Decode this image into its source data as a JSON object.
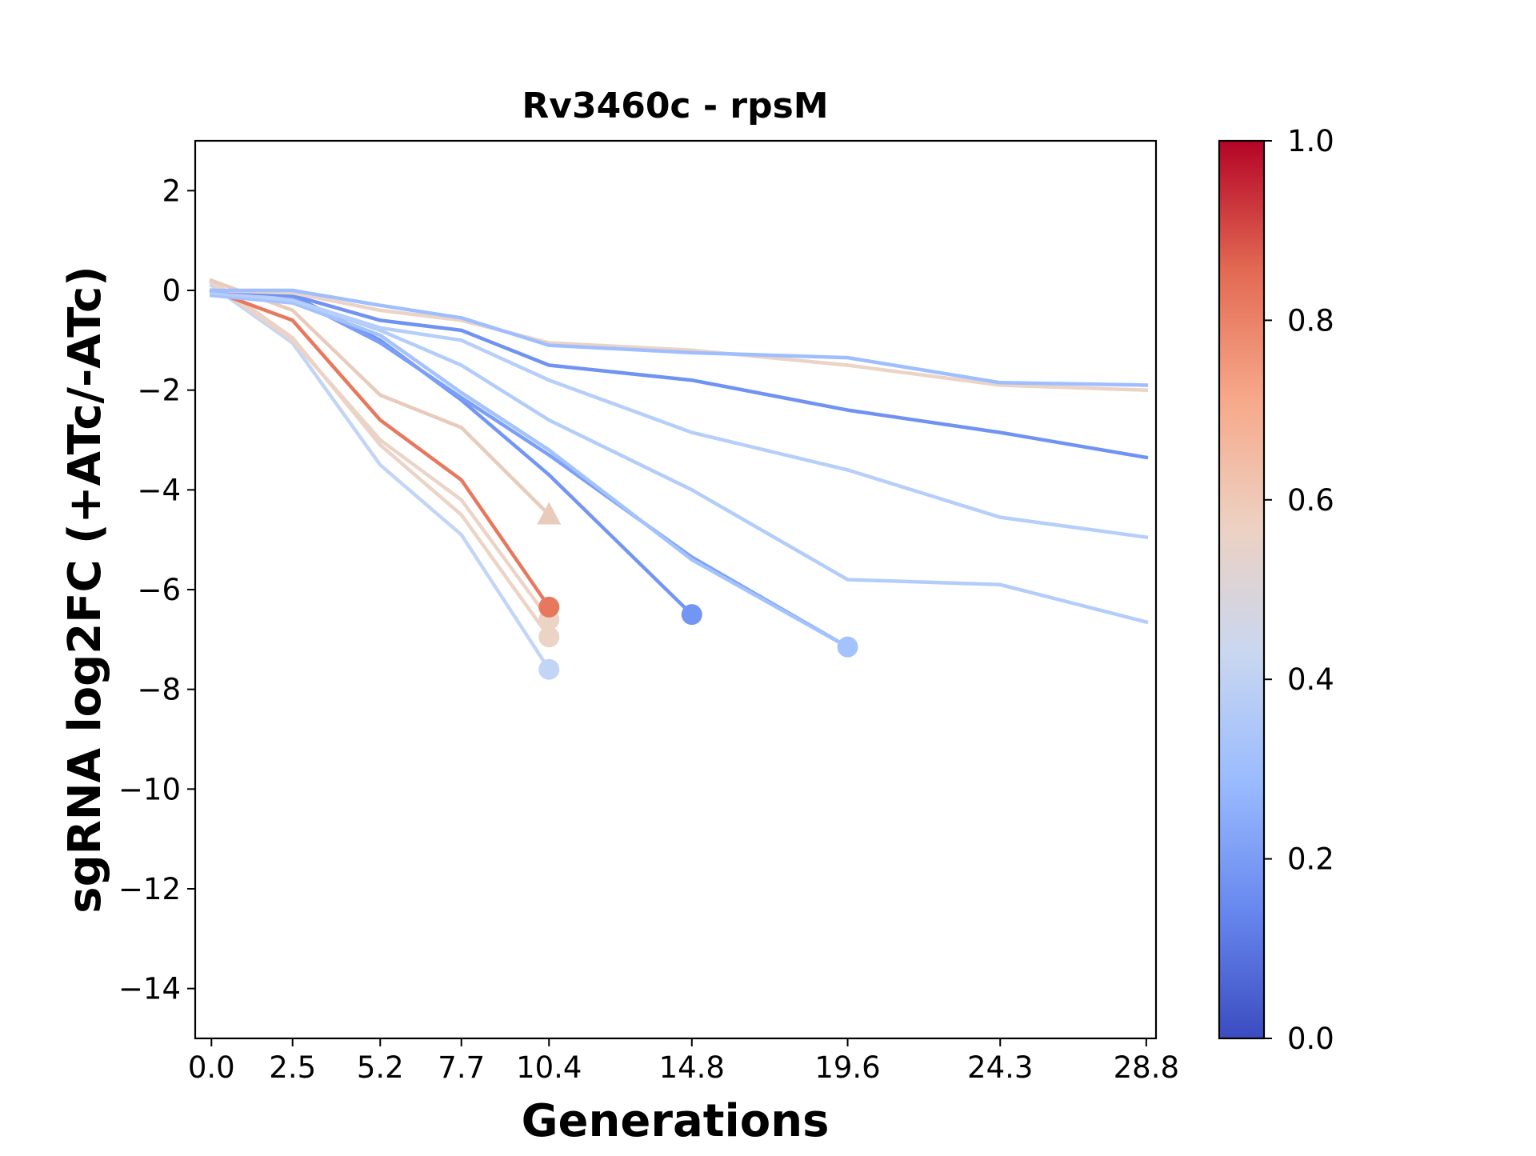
{
  "chart_data": {
    "type": "line",
    "title": "Rv3460c - rpsM",
    "xlabel": "Generations",
    "ylabel": "sgRNA log2FC (+ATc/-ATc)",
    "xlim": [
      -0.5,
      29.1
    ],
    "ylim": [
      -15,
      3
    ],
    "xtick_values": [
      0.0,
      2.5,
      5.2,
      7.7,
      10.4,
      14.8,
      19.6,
      24.3,
      28.8
    ],
    "xtick_labels": [
      "0.0",
      "2.5",
      "5.2",
      "7.7",
      "10.4",
      "14.8",
      "19.6",
      "24.3",
      "28.8"
    ],
    "ytick_values": [
      2,
      0,
      -2,
      -4,
      -6,
      -8,
      -10,
      -12,
      -14
    ],
    "ytick_labels": [
      "2",
      "0",
      "−2",
      "−4",
      "−6",
      "−8",
      "−10",
      "−12",
      "−14"
    ],
    "colorbar": {
      "range": [
        0.0,
        1.0
      ],
      "tick_values": [
        0.0,
        0.2,
        0.4,
        0.6,
        0.8,
        1.0
      ],
      "tick_labels": [
        "0.0",
        "0.2",
        "0.4",
        "0.6",
        "0.8",
        "1.0"
      ],
      "colormap": "coolwarm",
      "colors": [
        "#3b4cc0",
        "#6788ee",
        "#9abbff",
        "#c9d7f0",
        "#edd1c2",
        "#f7a889",
        "#e26952",
        "#b40426"
      ]
    },
    "series": [
      {
        "color": "#c2d5f7",
        "x": [
          0.0,
          2.5,
          5.2,
          7.7,
          10.4
        ],
        "y": [
          0.1,
          -1.05,
          -3.5,
          -4.9,
          -7.6
        ],
        "end_marker": "circle"
      },
      {
        "color": "#ebd3c6",
        "x": [
          0.0,
          2.5,
          5.2,
          7.7,
          10.4
        ],
        "y": [
          0.15,
          -1.0,
          -3.0,
          -4.2,
          -6.6
        ],
        "end_marker": "circle"
      },
      {
        "color": "#ebd3c6",
        "x": [
          0.0,
          2.5,
          5.2,
          7.7,
          10.4
        ],
        "y": [
          0.2,
          -0.95,
          -3.1,
          -4.5,
          -6.95
        ],
        "end_marker": "circle"
      },
      {
        "color": "#e8cbbb",
        "x": [
          0.0,
          2.5,
          5.2,
          7.7,
          10.4
        ],
        "y": [
          0.2,
          -0.4,
          -2.1,
          -2.75,
          -4.5
        ],
        "end_marker": "triangle"
      },
      {
        "color": "#e7785d",
        "x": [
          0.0,
          2.5,
          5.2,
          7.7,
          10.4
        ],
        "y": [
          0.0,
          -0.6,
          -2.6,
          -3.8,
          -6.35
        ],
        "end_marker": "circle"
      },
      {
        "color": "#7396f5",
        "x": [
          0.0,
          2.5,
          5.2,
          7.7,
          10.4,
          14.8
        ],
        "y": [
          0.0,
          -0.1,
          -1.0,
          -2.2,
          -3.7,
          -6.5
        ],
        "end_marker": "circle"
      },
      {
        "color": "#7b9ff9",
        "x": [
          0.0,
          2.5,
          5.2,
          7.7,
          10.4,
          14.8,
          19.6
        ],
        "y": [
          0.0,
          -0.15,
          -1.05,
          -2.15,
          -3.3,
          -5.35,
          -7.15
        ],
        "end_marker": "none"
      },
      {
        "color": "#a3c2fe",
        "x": [
          0.0,
          2.5,
          5.2,
          7.7,
          10.4,
          14.8,
          19.6
        ],
        "y": [
          -0.1,
          -0.25,
          -0.9,
          -2.05,
          -3.2,
          -5.4,
          -7.15
        ],
        "end_marker": "circle"
      },
      {
        "color": "#b3cdfb",
        "x": [
          0.0,
          2.5,
          5.2,
          7.7,
          10.4,
          14.8,
          19.6,
          24.3,
          28.8
        ],
        "y": [
          -0.05,
          -0.2,
          -0.8,
          -1.5,
          -2.6,
          -4.0,
          -5.8,
          -5.9,
          -6.65
        ],
        "end_marker": "none"
      },
      {
        "color": "#b6cefa",
        "x": [
          0.0,
          2.5,
          5.2,
          7.7,
          10.4,
          14.8,
          19.6,
          24.3,
          28.8
        ],
        "y": [
          0.0,
          -0.2,
          -0.75,
          -1.0,
          -1.8,
          -2.85,
          -3.6,
          -4.55,
          -4.95
        ],
        "end_marker": "none"
      },
      {
        "color": "#6f92f3",
        "x": [
          0.0,
          2.5,
          5.2,
          7.7,
          10.4,
          14.8,
          19.6,
          24.3,
          28.8
        ],
        "y": [
          0.0,
          -0.1,
          -0.6,
          -0.8,
          -1.5,
          -1.8,
          -2.4,
          -2.85,
          -3.35
        ],
        "end_marker": "none"
      },
      {
        "color": "#ebd3c6",
        "x": [
          0.0,
          2.5,
          5.2,
          7.7,
          10.4,
          14.8,
          19.6,
          24.3,
          28.8
        ],
        "y": [
          0.0,
          -0.05,
          -0.4,
          -0.6,
          -1.05,
          -1.2,
          -1.5,
          -1.9,
          -2.0
        ],
        "end_marker": "none"
      },
      {
        "color": "#9ebeff",
        "x": [
          0.0,
          2.5,
          5.2,
          7.7,
          10.4,
          14.8,
          19.6,
          24.3,
          28.8
        ],
        "y": [
          0.0,
          0.0,
          -0.3,
          -0.55,
          -1.1,
          -1.25,
          -1.35,
          -1.85,
          -1.9
        ],
        "end_marker": "none"
      }
    ]
  }
}
